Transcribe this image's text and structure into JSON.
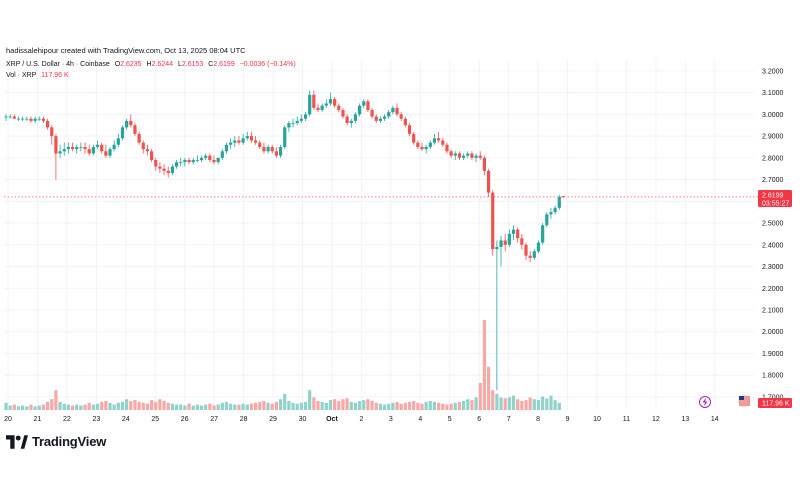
{
  "credit": "hadissalehipour created with TradingView.com, Oct 13, 2025 08:04 UTC",
  "legend": {
    "symbol": "XRP / U.S. Dollar · 4h · Coinbase",
    "o_label": "O",
    "o": "2.6235",
    "h_label": "H",
    "h": "2.6244",
    "l_label": "L",
    "l": "2.6153",
    "c_label": "C",
    "c": "2.6199",
    "change": "−0.0036 (−0.14%)",
    "vol_label": "Vol · XRP",
    "vol": "117.96 K"
  },
  "brand": "TradingView",
  "colors": {
    "up": "#26a69a",
    "down": "#ef5350",
    "up_vol": "#92d2cc",
    "down_vol": "#f7a9a7",
    "price_tag": "#f23645",
    "grid": "#f0f3fa",
    "axis_text": "#131722"
  },
  "chart_data": {
    "type": "candlestick",
    "interval": "4h",
    "y_axis_ticks": [
      "3.2000",
      "3.1000",
      "3.0000",
      "2.9000",
      "2.8000",
      "2.7000",
      "2.6000",
      "2.5000",
      "2.4000",
      "2.3000",
      "2.2000",
      "2.1000",
      "2.0000",
      "1.9000",
      "1.8000",
      "1.7000"
    ],
    "y_range": [
      1.64,
      3.25
    ],
    "x_ticks": [
      "20",
      "21",
      "22",
      "23",
      "24",
      "25",
      "26",
      "27",
      "28",
      "29",
      "30",
      "Oct",
      "2",
      "3",
      "4",
      "5",
      "6",
      "7",
      "8",
      "9",
      "10",
      "11",
      "12",
      "13",
      "14"
    ],
    "last_price": "2.6199",
    "countdown": "03:55:27",
    "volume_tag": "117.96 K",
    "candles": [
      [
        2.99,
        3.0,
        2.97,
        2.99
      ],
      [
        2.99,
        3.0,
        2.98,
        2.99
      ],
      [
        2.99,
        3.0,
        2.98,
        2.98
      ],
      [
        2.98,
        2.99,
        2.97,
        2.98
      ],
      [
        2.98,
        2.99,
        2.97,
        2.98
      ],
      [
        2.98,
        2.99,
        2.97,
        2.98
      ],
      [
        2.98,
        2.99,
        2.96,
        2.97
      ],
      [
        2.97,
        2.99,
        2.96,
        2.98
      ],
      [
        2.98,
        2.99,
        2.97,
        2.98
      ],
      [
        2.98,
        2.99,
        2.96,
        2.97
      ],
      [
        2.97,
        2.98,
        2.93,
        2.94
      ],
      [
        2.94,
        2.95,
        2.86,
        2.9
      ],
      [
        2.9,
        2.91,
        2.7,
        2.82
      ],
      [
        2.82,
        2.86,
        2.8,
        2.83
      ],
      [
        2.83,
        2.87,
        2.81,
        2.84
      ],
      [
        2.84,
        2.87,
        2.82,
        2.85
      ],
      [
        2.85,
        2.87,
        2.83,
        2.84
      ],
      [
        2.84,
        2.86,
        2.82,
        2.85
      ],
      [
        2.85,
        2.87,
        2.83,
        2.85
      ],
      [
        2.85,
        2.87,
        2.82,
        2.84
      ],
      [
        2.84,
        2.86,
        2.81,
        2.82
      ],
      [
        2.82,
        2.86,
        2.81,
        2.85
      ],
      [
        2.85,
        2.88,
        2.84,
        2.86
      ],
      [
        2.86,
        2.87,
        2.82,
        2.83
      ],
      [
        2.83,
        2.86,
        2.8,
        2.81
      ],
      [
        2.81,
        2.85,
        2.8,
        2.84
      ],
      [
        2.84,
        2.88,
        2.83,
        2.86
      ],
      [
        2.86,
        2.91,
        2.85,
        2.89
      ],
      [
        2.89,
        2.95,
        2.88,
        2.94
      ],
      [
        2.94,
        2.98,
        2.93,
        2.97
      ],
      [
        2.97,
        3.0,
        2.94,
        2.95
      ],
      [
        2.95,
        2.96,
        2.9,
        2.91
      ],
      [
        2.91,
        2.92,
        2.86,
        2.87
      ],
      [
        2.87,
        2.88,
        2.82,
        2.84
      ],
      [
        2.84,
        2.86,
        2.81,
        2.83
      ],
      [
        2.83,
        2.84,
        2.78,
        2.79
      ],
      [
        2.79,
        2.8,
        2.74,
        2.76
      ],
      [
        2.76,
        2.78,
        2.73,
        2.75
      ],
      [
        2.75,
        2.77,
        2.72,
        2.74
      ],
      [
        2.74,
        2.76,
        2.71,
        2.73
      ],
      [
        2.73,
        2.77,
        2.72,
        2.76
      ],
      [
        2.76,
        2.79,
        2.75,
        2.78
      ],
      [
        2.78,
        2.8,
        2.76,
        2.78
      ],
      [
        2.78,
        2.8,
        2.76,
        2.79
      ],
      [
        2.79,
        2.8,
        2.77,
        2.78
      ],
      [
        2.78,
        2.8,
        2.77,
        2.79
      ],
      [
        2.79,
        2.81,
        2.78,
        2.79
      ],
      [
        2.79,
        2.81,
        2.78,
        2.8
      ],
      [
        2.8,
        2.82,
        2.79,
        2.81
      ],
      [
        2.81,
        2.82,
        2.78,
        2.79
      ],
      [
        2.79,
        2.81,
        2.77,
        2.78
      ],
      [
        2.78,
        2.8,
        2.77,
        2.8
      ],
      [
        2.8,
        2.84,
        2.79,
        2.83
      ],
      [
        2.83,
        2.87,
        2.82,
        2.86
      ],
      [
        2.86,
        2.89,
        2.84,
        2.87
      ],
      [
        2.87,
        2.9,
        2.85,
        2.88
      ],
      [
        2.88,
        2.9,
        2.86,
        2.87
      ],
      [
        2.87,
        2.91,
        2.86,
        2.89
      ],
      [
        2.89,
        2.92,
        2.88,
        2.9
      ],
      [
        2.9,
        2.92,
        2.87,
        2.88
      ],
      [
        2.88,
        2.9,
        2.86,
        2.87
      ],
      [
        2.87,
        2.88,
        2.84,
        2.85
      ],
      [
        2.85,
        2.87,
        2.82,
        2.83
      ],
      [
        2.83,
        2.86,
        2.82,
        2.85
      ],
      [
        2.85,
        2.86,
        2.82,
        2.83
      ],
      [
        2.83,
        2.85,
        2.8,
        2.81
      ],
      [
        2.81,
        2.86,
        2.8,
        2.85
      ],
      [
        2.85,
        2.95,
        2.84,
        2.94
      ],
      [
        2.94,
        2.97,
        2.92,
        2.96
      ],
      [
        2.96,
        2.98,
        2.94,
        2.96
      ],
      [
        2.96,
        2.99,
        2.95,
        2.97
      ],
      [
        2.97,
        3.0,
        2.96,
        2.98
      ],
      [
        2.98,
        3.01,
        2.97,
        3.0
      ],
      [
        3.0,
        3.11,
        2.99,
        3.09
      ],
      [
        3.09,
        3.11,
        3.02,
        3.03
      ],
      [
        3.03,
        3.05,
        3.01,
        3.02
      ],
      [
        3.02,
        3.05,
        3.01,
        3.04
      ],
      [
        3.04,
        3.07,
        3.03,
        3.05
      ],
      [
        3.05,
        3.1,
        3.04,
        3.07
      ],
      [
        3.07,
        3.08,
        3.03,
        3.04
      ],
      [
        3.04,
        3.05,
        3.01,
        3.02
      ],
      [
        3.02,
        3.03,
        2.98,
        2.99
      ],
      [
        2.99,
        3.0,
        2.95,
        2.96
      ],
      [
        2.96,
        2.98,
        2.94,
        2.97
      ],
      [
        2.97,
        3.01,
        2.96,
        3.0
      ],
      [
        3.0,
        3.05,
        2.99,
        3.04
      ],
      [
        3.04,
        3.07,
        3.03,
        3.06
      ],
      [
        3.06,
        3.07,
        3.01,
        3.02
      ],
      [
        3.02,
        3.03,
        2.98,
        2.99
      ],
      [
        2.99,
        3.0,
        2.96,
        2.97
      ],
      [
        2.97,
        2.99,
        2.96,
        2.98
      ],
      [
        2.98,
        3.0,
        2.97,
        2.99
      ],
      [
        2.99,
        3.02,
        2.98,
        3.01
      ],
      [
        3.01,
        3.04,
        3.0,
        3.03
      ],
      [
        3.03,
        3.05,
        2.99,
        3.0
      ],
      [
        3.0,
        3.01,
        2.97,
        2.98
      ],
      [
        2.98,
        2.99,
        2.94,
        2.95
      ],
      [
        2.95,
        2.96,
        2.9,
        2.91
      ],
      [
        2.91,
        2.92,
        2.86,
        2.87
      ],
      [
        2.87,
        2.88,
        2.84,
        2.85
      ],
      [
        2.85,
        2.87,
        2.83,
        2.84
      ],
      [
        2.84,
        2.86,
        2.82,
        2.85
      ],
      [
        2.85,
        2.88,
        2.84,
        2.87
      ],
      [
        2.87,
        2.91,
        2.86,
        2.89
      ],
      [
        2.89,
        2.92,
        2.87,
        2.88
      ],
      [
        2.88,
        2.89,
        2.85,
        2.86
      ],
      [
        2.86,
        2.87,
        2.82,
        2.83
      ],
      [
        2.83,
        2.84,
        2.8,
        2.81
      ],
      [
        2.81,
        2.83,
        2.79,
        2.82
      ],
      [
        2.82,
        2.83,
        2.79,
        2.8
      ],
      [
        2.8,
        2.82,
        2.79,
        2.81
      ],
      [
        2.81,
        2.83,
        2.8,
        2.82
      ],
      [
        2.82,
        2.83,
        2.79,
        2.8
      ],
      [
        2.8,
        2.82,
        2.78,
        2.81
      ],
      [
        2.81,
        2.83,
        2.79,
        2.8
      ],
      [
        2.8,
        2.81,
        2.72,
        2.74
      ],
      [
        2.74,
        2.75,
        2.62,
        2.64
      ],
      [
        2.64,
        2.65,
        2.35,
        2.38
      ],
      [
        2.38,
        2.42,
        1.73,
        2.39
      ],
      [
        2.39,
        2.44,
        2.3,
        2.42
      ],
      [
        2.42,
        2.45,
        2.37,
        2.4
      ],
      [
        2.4,
        2.47,
        2.39,
        2.45
      ],
      [
        2.45,
        2.49,
        2.42,
        2.47
      ],
      [
        2.47,
        2.48,
        2.41,
        2.43
      ],
      [
        2.43,
        2.45,
        2.38,
        2.4
      ],
      [
        2.4,
        2.41,
        2.33,
        2.35
      ],
      [
        2.35,
        2.37,
        2.32,
        2.34
      ],
      [
        2.34,
        2.38,
        2.33,
        2.37
      ],
      [
        2.37,
        2.42,
        2.36,
        2.41
      ],
      [
        2.41,
        2.5,
        2.4,
        2.49
      ],
      [
        2.49,
        2.55,
        2.48,
        2.54
      ],
      [
        2.54,
        2.57,
        2.52,
        2.55
      ],
      [
        2.55,
        2.58,
        2.54,
        2.57
      ],
      [
        2.57,
        2.63,
        2.56,
        2.62
      ],
      [
        2.6235,
        2.6244,
        2.6153,
        2.6199
      ]
    ],
    "volumes": [
      8,
      5,
      6,
      4,
      5,
      4,
      6,
      4,
      5,
      6,
      9,
      12,
      22,
      9,
      7,
      6,
      5,
      6,
      5,
      6,
      8,
      6,
      7,
      9,
      10,
      8,
      6,
      8,
      9,
      12,
      10,
      11,
      9,
      8,
      7,
      11,
      9,
      12,
      10,
      8,
      7,
      6,
      6,
      5,
      7,
      5,
      6,
      5,
      6,
      7,
      5,
      6,
      8,
      9,
      7,
      6,
      6,
      7,
      6,
      7,
      8,
      9,
      10,
      8,
      7,
      9,
      12,
      18,
      10,
      8,
      7,
      8,
      9,
      22,
      14,
      10,
      9,
      8,
      11,
      12,
      10,
      12,
      13,
      9,
      8,
      10,
      11,
      12,
      10,
      8,
      7,
      6,
      7,
      8,
      9,
      7,
      8,
      9,
      10,
      8,
      7,
      9,
      10,
      9,
      8,
      7,
      6,
      7,
      8,
      9,
      10,
      12,
      11,
      14,
      30,
      100,
      48,
      22,
      18,
      14,
      13,
      14,
      16,
      12,
      10,
      11,
      14,
      12,
      11,
      15,
      13,
      16,
      11,
      8
    ]
  }
}
